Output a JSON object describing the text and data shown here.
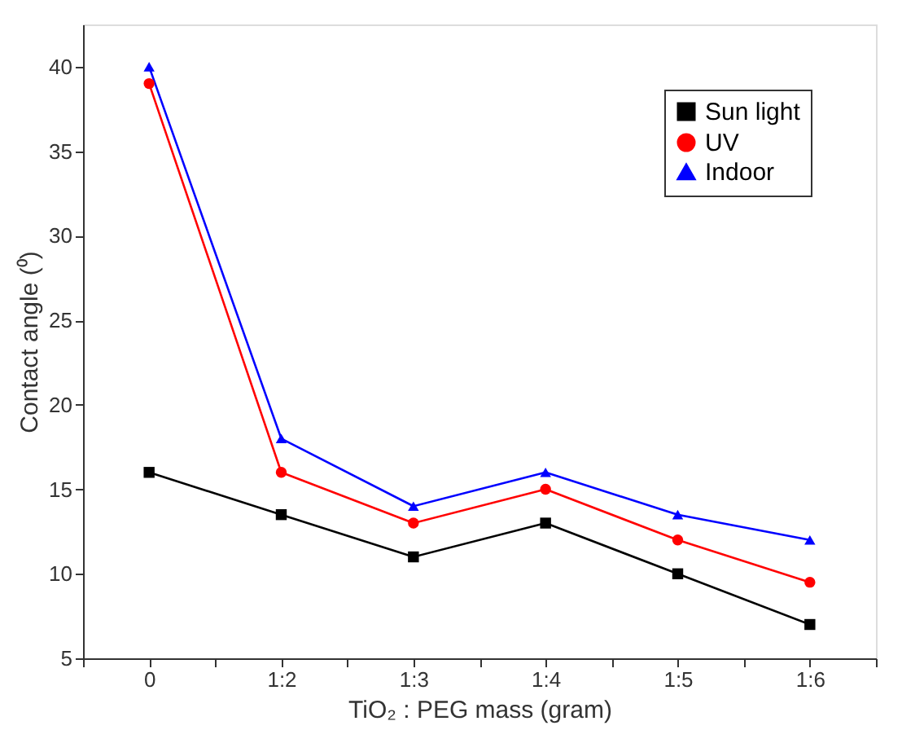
{
  "chart_data": {
    "type": "line",
    "xlabel": "TiO₂ : PEG mass (gram)",
    "ylabel": "Contact angle (⁰)",
    "categories": [
      "0",
      "1:2",
      "1:3",
      "1:4",
      "1:5",
      "1:6"
    ],
    "series": [
      {
        "name": "Sun light",
        "color": "#000000",
        "marker": "square",
        "values": [
          16,
          13.5,
          11,
          13,
          10,
          7
        ]
      },
      {
        "name": "UV",
        "color": "#ff0000",
        "marker": "circle",
        "values": [
          39,
          16,
          13,
          15,
          12,
          9.5
        ]
      },
      {
        "name": "Indoor",
        "color": "#0000ff",
        "marker": "triangle",
        "values": [
          40,
          18,
          14,
          16,
          13.5,
          12
        ]
      }
    ],
    "ylim": [
      5,
      42.5
    ],
    "yticks": [
      5,
      10,
      15,
      20,
      25,
      30,
      35,
      40
    ],
    "grid": false,
    "legend": "top right",
    "line_style": "solid"
  }
}
